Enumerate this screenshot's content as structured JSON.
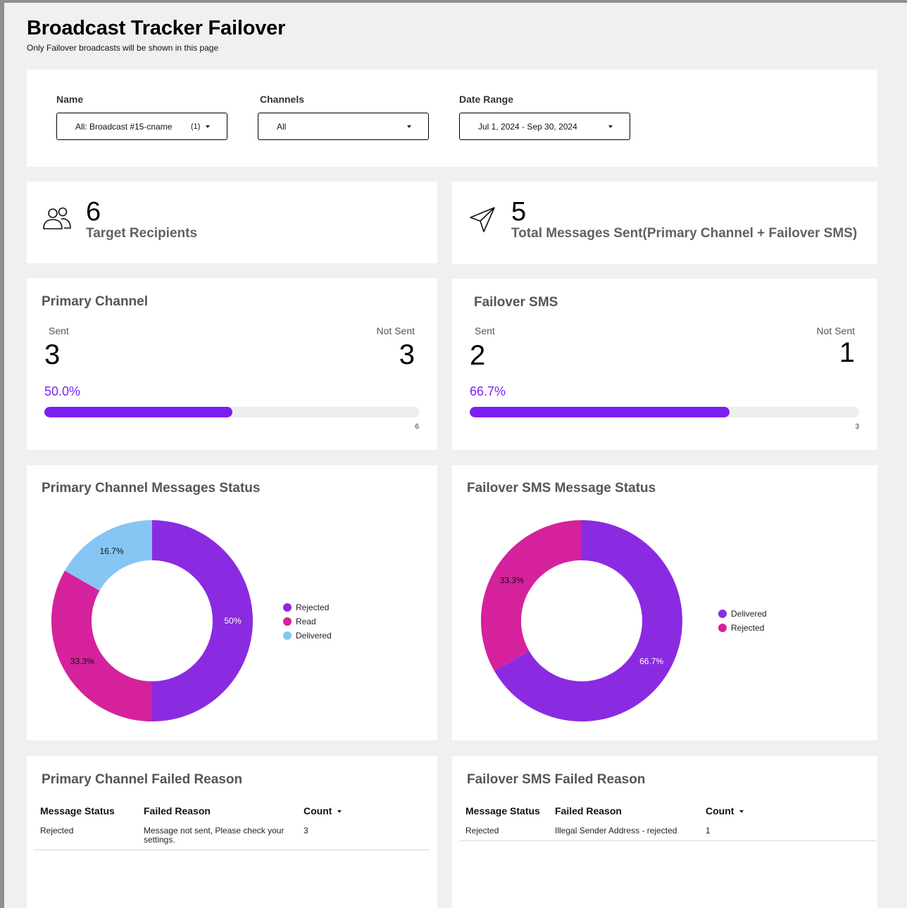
{
  "header": {
    "title": "Broadcast Tracker Failover",
    "subtitle": "Only Failover broadcasts will be shown in this page"
  },
  "filters": {
    "name_label": "Name",
    "name_value": "All: Broadcast #15-cname",
    "name_count": "(1)",
    "channels_label": "Channels",
    "channels_value": "All",
    "date_label": "Date Range",
    "date_value": "Jul 1, 2024 - Sep 30, 2024"
  },
  "kpis": {
    "recipients_value": "6",
    "recipients_label": "Target Recipients",
    "recipients_icon": "people-icon",
    "sent_value": "5",
    "sent_label": "Total Messages Sent(Primary Channel + Failover SMS)",
    "sent_icon": "paper-plane-icon"
  },
  "primary": {
    "title": "Primary Channel",
    "sent_label": "Sent",
    "sent_value": "3",
    "not_sent_label": "Not Sent",
    "not_sent_value": "3",
    "percent": "50.0%",
    "progress": 0.5,
    "max": "6"
  },
  "failover": {
    "title": "Failover SMS",
    "sent_label": "Sent",
    "sent_value": "2",
    "not_sent_label": "Not Sent",
    "not_sent_value": "1",
    "percent": "66.7%",
    "progress": 0.667,
    "max": "3"
  },
  "colors": {
    "accent": "#7b1ff0",
    "rejected": "#8a2be2",
    "read": "#d6219c",
    "delivered_light": "#86c5f4"
  },
  "chart_data": [
    {
      "type": "pie",
      "title": "Primary Channel Messages Status",
      "slices": [
        {
          "label": "Rejected",
          "value": 50,
          "display": "50%",
          "color": "#8a2be2"
        },
        {
          "label": "Read",
          "value": 33.3,
          "display": "33.3%",
          "color": "#d6219c"
        },
        {
          "label": "Delivered",
          "value": 16.7,
          "display": "16.7%",
          "color": "#86c5f4"
        }
      ],
      "legend_position": "right"
    },
    {
      "type": "pie",
      "title": "Failover SMS Message Status",
      "slices": [
        {
          "label": "Delivered",
          "value": 66.7,
          "display": "66.7%",
          "color": "#8a2be2"
        },
        {
          "label": "Rejected",
          "value": 33.3,
          "display": "33.3%",
          "color": "#d6219c"
        }
      ],
      "legend_position": "right"
    }
  ],
  "primary_failed": {
    "title": "Primary Channel Failed Reason",
    "columns": [
      "Message Status",
      "Failed Reason",
      "Count"
    ],
    "rows": [
      [
        "Rejected",
        "Message not sent, Please check your settings.",
        "3"
      ]
    ]
  },
  "failover_failed": {
    "title": "Failover SMS Failed Reason",
    "columns": [
      "Message Status",
      "Failed Reason",
      "Count"
    ],
    "rows": [
      [
        "Rejected",
        "Illegal Sender Address - rejected",
        "1"
      ]
    ]
  }
}
